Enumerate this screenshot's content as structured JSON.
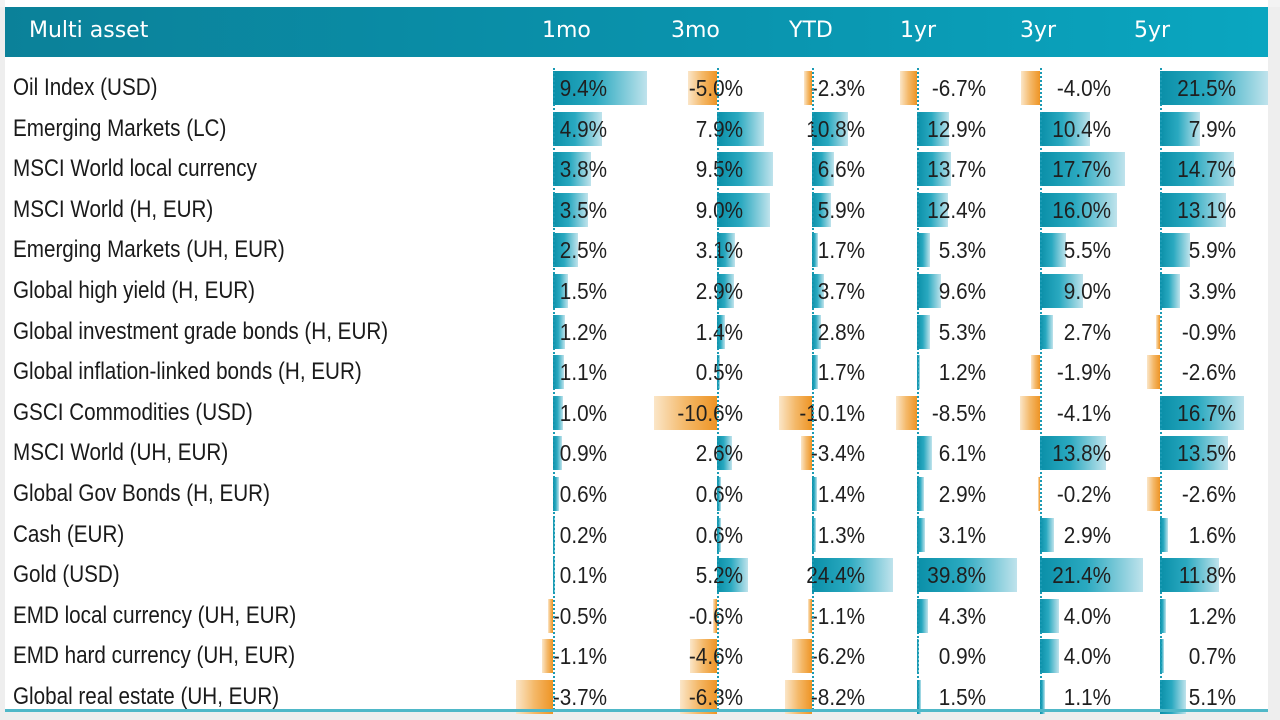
{
  "table": {
    "title": "Multi asset",
    "columns": [
      "1mo",
      "3mo",
      "YTD",
      "1yr",
      "3yr",
      "5yr"
    ],
    "colors": {
      "header": "#0a93ad",
      "positive": "#0a8fa8",
      "negative": "#ee9424",
      "axis": "#1a9ab3"
    },
    "rows": [
      {
        "name": "Oil Index (USD)",
        "values": [
          "9.4%",
          "-5.0%",
          "-2.3%",
          "-6.7%",
          "-4.0%",
          "21.5%"
        ]
      },
      {
        "name": "Emerging Markets (LC)",
        "values": [
          "4.9%",
          "7.9%",
          "10.8%",
          "12.9%",
          "10.4%",
          "7.9%"
        ]
      },
      {
        "name": "MSCI World local currency",
        "values": [
          "3.8%",
          "9.5%",
          "6.6%",
          "13.7%",
          "17.7%",
          "14.7%"
        ]
      },
      {
        "name": "MSCI World (H, EUR)",
        "values": [
          "3.5%",
          "9.0%",
          "5.9%",
          "12.4%",
          "16.0%",
          "13.1%"
        ]
      },
      {
        "name": "Emerging Markets (UH, EUR)",
        "values": [
          "2.5%",
          "3.1%",
          "1.7%",
          "5.3%",
          "5.5%",
          "5.9%"
        ]
      },
      {
        "name": "Global high yield (H, EUR)",
        "values": [
          "1.5%",
          "2.9%",
          "3.7%",
          "9.6%",
          "9.0%",
          "3.9%"
        ]
      },
      {
        "name": "Global investment grade bonds (H, EUR)",
        "values": [
          "1.2%",
          "1.4%",
          "2.8%",
          "5.3%",
          "2.7%",
          "-0.9%"
        ]
      },
      {
        "name": "Global inflation-linked bonds (H, EUR)",
        "values": [
          "1.1%",
          "0.5%",
          "1.7%",
          "1.2%",
          "-1.9%",
          "-2.6%"
        ]
      },
      {
        "name": "GSCI Commodities (USD)",
        "values": [
          "1.0%",
          "-10.6%",
          "-10.1%",
          "-8.5%",
          "-4.1%",
          "16.7%"
        ]
      },
      {
        "name": "MSCI World (UH, EUR)",
        "values": [
          "0.9%",
          "2.6%",
          "-3.4%",
          "6.1%",
          "13.8%",
          "13.5%"
        ]
      },
      {
        "name": "Global Gov Bonds (H, EUR)",
        "values": [
          "0.6%",
          "0.6%",
          "1.4%",
          "2.9%",
          "-0.2%",
          "-2.6%"
        ]
      },
      {
        "name": "Cash (EUR)",
        "values": [
          "0.2%",
          "0.6%",
          "1.3%",
          "3.1%",
          "2.9%",
          "1.6%"
        ]
      },
      {
        "name": "Gold (USD)",
        "values": [
          "0.1%",
          "5.2%",
          "24.4%",
          "39.8%",
          "21.4%",
          "11.8%"
        ]
      },
      {
        "name": "EMD local currency (UH, EUR)",
        "values": [
          "-0.5%",
          "-0.6%",
          "-1.1%",
          "4.3%",
          "4.0%",
          "1.2%"
        ]
      },
      {
        "name": "EMD hard currency (UH, EUR)",
        "values": [
          "-1.1%",
          "-4.6%",
          "-6.2%",
          "0.9%",
          "4.0%",
          "0.7%"
        ]
      },
      {
        "name": "Global real estate (UH, EUR)",
        "values": [
          "-3.7%",
          "-6.3%",
          "-8.2%",
          "1.5%",
          "1.1%",
          "5.1%"
        ]
      }
    ]
  },
  "chart_data": {
    "type": "table",
    "title": "Multi asset",
    "categories": [
      "Oil Index (USD)",
      "Emerging Markets (LC)",
      "MSCI World local currency",
      "MSCI World (H, EUR)",
      "Emerging Markets (UH, EUR)",
      "Global high yield (H, EUR)",
      "Global investment grade bonds (H, EUR)",
      "Global inflation-linked bonds (H, EUR)",
      "GSCI Commodities (USD)",
      "MSCI World (UH, EUR)",
      "Global Gov Bonds (H, EUR)",
      "Cash (EUR)",
      "Gold (USD)",
      "EMD local currency (UH, EUR)",
      "EMD hard currency (UH, EUR)",
      "Global real estate (UH, EUR)"
    ],
    "series": [
      {
        "name": "1mo",
        "values": [
          9.4,
          4.9,
          3.8,
          3.5,
          2.5,
          1.5,
          1.2,
          1.1,
          1.0,
          0.9,
          0.6,
          0.2,
          0.1,
          -0.5,
          -1.1,
          -3.7
        ]
      },
      {
        "name": "3mo",
        "values": [
          -5.0,
          7.9,
          9.5,
          9.0,
          3.1,
          2.9,
          1.4,
          0.5,
          -10.6,
          2.6,
          0.6,
          0.6,
          5.2,
          -0.6,
          -4.6,
          -6.3
        ]
      },
      {
        "name": "YTD",
        "values": [
          -2.3,
          10.8,
          6.6,
          5.9,
          1.7,
          3.7,
          2.8,
          1.7,
          -10.1,
          -3.4,
          1.4,
          1.3,
          24.4,
          -1.1,
          -6.2,
          -8.2
        ]
      },
      {
        "name": "1yr",
        "values": [
          -6.7,
          12.9,
          13.7,
          12.4,
          5.3,
          9.6,
          5.3,
          1.2,
          -8.5,
          6.1,
          2.9,
          3.1,
          39.8,
          4.3,
          0.9,
          1.5
        ]
      },
      {
        "name": "3yr",
        "values": [
          -4.0,
          10.4,
          17.7,
          16.0,
          5.5,
          9.0,
          2.7,
          -1.9,
          -4.1,
          13.8,
          -0.2,
          2.9,
          21.4,
          4.0,
          4.0,
          1.1
        ]
      },
      {
        "name": "5yr",
        "values": [
          21.5,
          7.9,
          14.7,
          13.1,
          5.9,
          3.9,
          -0.9,
          -2.6,
          16.7,
          13.5,
          -2.6,
          1.6,
          11.8,
          1.2,
          0.7,
          5.1
        ]
      }
    ],
    "unit": "%"
  }
}
